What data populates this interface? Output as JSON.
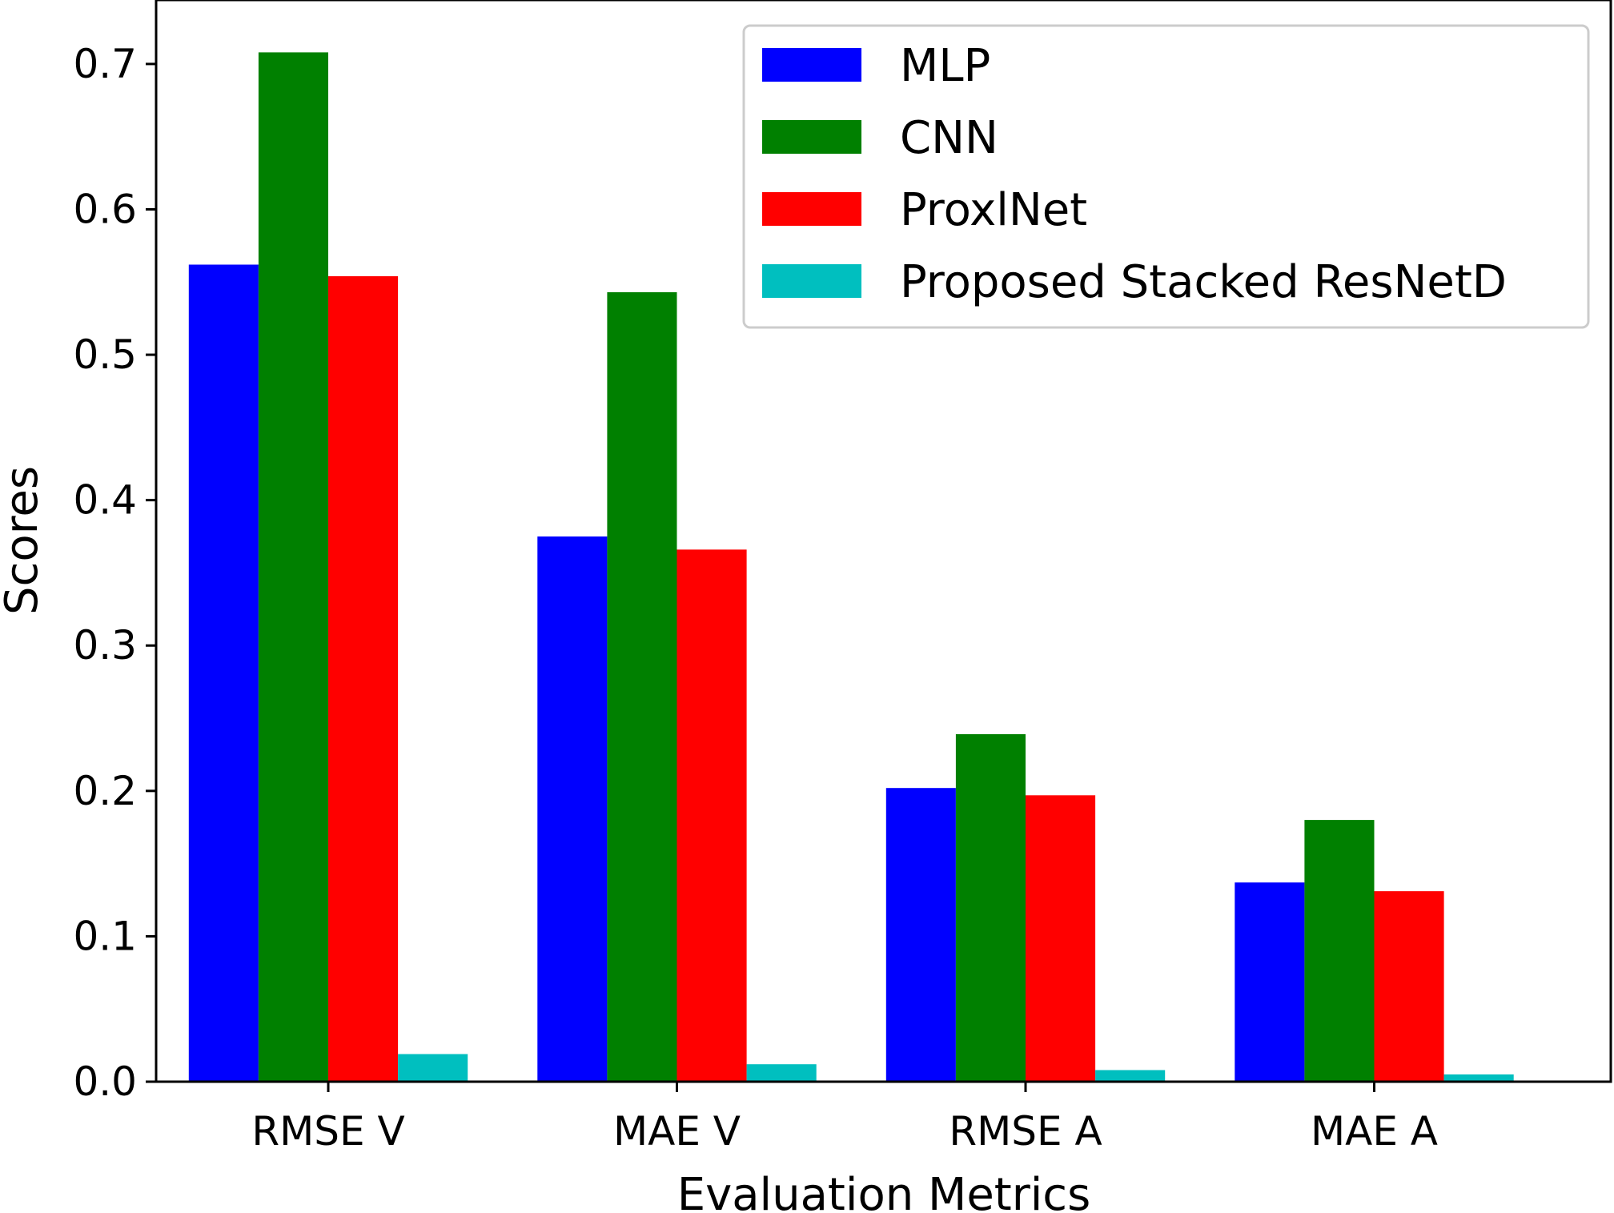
{
  "chart_data": {
    "type": "bar",
    "categories": [
      "RMSE V",
      "MAE V",
      "RMSE A",
      "MAE A"
    ],
    "series": [
      {
        "name": "MLP",
        "color": "#0000ff",
        "values": [
          0.562,
          0.375,
          0.202,
          0.137
        ]
      },
      {
        "name": "CNN",
        "color": "#008000",
        "values": [
          0.708,
          0.543,
          0.239,
          0.18
        ]
      },
      {
        "name": "ProxlNet",
        "color": "#ff0000",
        "values": [
          0.554,
          0.366,
          0.197,
          0.131
        ]
      },
      {
        "name": "Proposed Stacked ResNetD",
        "color": "#00bfbf",
        "values": [
          0.019,
          0.012,
          0.008,
          0.005
        ]
      }
    ],
    "title": "",
    "xlabel": "Evaluation Metrics",
    "ylabel": "Scores",
    "ylim": [
      0,
      0.744
    ],
    "yticks": [
      "0.0",
      "0.1",
      "0.2",
      "0.3",
      "0.4",
      "0.5",
      "0.6",
      "0.7"
    ],
    "grid": false,
    "legend_position": "top-right"
  }
}
